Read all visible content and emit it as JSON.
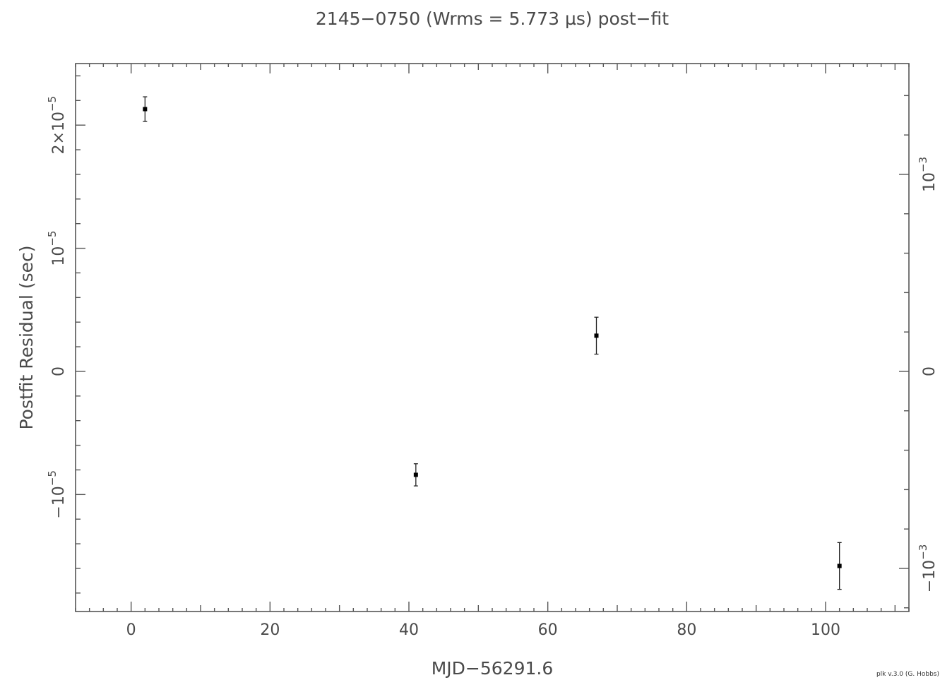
{
  "chart_data": {
    "type": "scatter",
    "title": "2145−0750 (Wrms = 5.773 µs) post−fit",
    "xlabel": "MJD−56291.6",
    "ylabel": "Postfit Residual (sec)",
    "xlim": [
      -8,
      112
    ],
    "ylim": [
      -1.95e-05,
      2.5e-05
    ],
    "x_ticks": [
      {
        "value": 0,
        "label": "0"
      },
      {
        "value": 20,
        "label": "20"
      },
      {
        "value": 40,
        "label": "40"
      },
      {
        "value": 60,
        "label": "60"
      },
      {
        "value": 80,
        "label": "80"
      },
      {
        "value": 100,
        "label": "100"
      }
    ],
    "y_ticks": [
      {
        "value": 2e-05,
        "label": "2×10",
        "exp": "−5"
      },
      {
        "value": 1e-05,
        "label": "10",
        "exp": "−5"
      },
      {
        "value": 0,
        "label": "0",
        "exp": ""
      },
      {
        "value": -1e-05,
        "label": "−10",
        "exp": "−5"
      }
    ],
    "y2_ticks": [
      {
        "value": 1.6e-05,
        "label": "10",
        "exp": "−3"
      },
      {
        "value": 0,
        "label": "0",
        "exp": ""
      },
      {
        "value": -1.6e-05,
        "label": "−10",
        "exp": "−3"
      }
    ],
    "points": [
      {
        "x": 2,
        "y": 2.13e-05,
        "err": 1e-06
      },
      {
        "x": 41,
        "y": -8.4e-06,
        "err": 9e-07
      },
      {
        "x": 67,
        "y": 2.9e-06,
        "err": 1.5e-06
      },
      {
        "x": 102,
        "y": -1.58e-05,
        "err": 1.9e-06
      }
    ],
    "grid": false,
    "colors": {
      "axes": "#555555",
      "points": "#000000",
      "text": "#4a4a4a"
    }
  },
  "credit": "plk v.3.0 (G. Hobbs)"
}
